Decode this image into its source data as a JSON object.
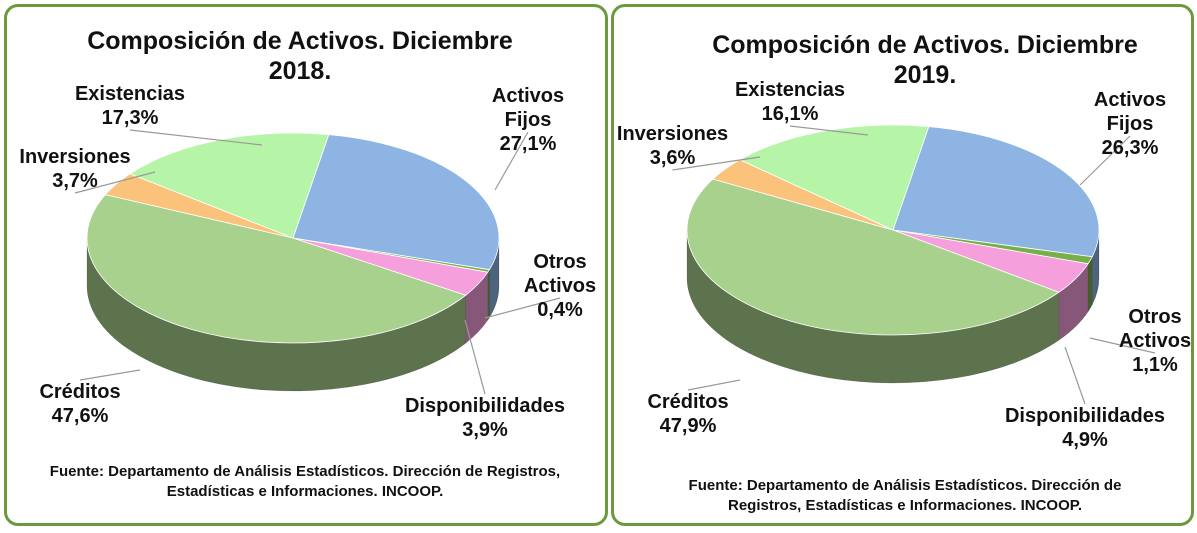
{
  "chart_data": [
    {
      "type": "pie3d",
      "title": "Composición de Activos. Diciembre 2018.",
      "categories": [
        "Activos Fijos",
        "Otros Activos",
        "Disponibilidades",
        "Créditos",
        "Inversiones",
        "Existencias"
      ],
      "values": [
        27.1,
        0.4,
        3.9,
        47.6,
        3.7,
        17.3
      ],
      "value_labels": [
        "27,1%",
        "0,4%",
        "3,9%",
        "47,6%",
        "3,7%",
        "17,3%"
      ],
      "colors": [
        "#8db4e2",
        "#77b04a",
        "#f59fdc",
        "#a9d18e",
        "#fac27a",
        "#b6f5a8"
      ],
      "source": "Fuente: Departamento de Análisis Estadísticos. Dirección de Registros, Estadísticas e Informaciones. INCOOP."
    },
    {
      "type": "pie3d",
      "title": "Composición de Activos. Diciembre 2019.",
      "categories": [
        "Activos Fijos",
        "Otros Activos",
        "Disponibilidades",
        "Créditos",
        "Inversiones",
        "Existencias"
      ],
      "values": [
        26.3,
        1.1,
        4.9,
        47.9,
        3.6,
        16.1
      ],
      "value_labels": [
        "26,3%",
        "1,1%",
        "4,9%",
        "47,9%",
        "3,6%",
        "16,1%"
      ],
      "colors": [
        "#8db4e2",
        "#77b04a",
        "#f59fdc",
        "#a9d18e",
        "#fac27a",
        "#b6f5a8"
      ],
      "source": "Fuente: Departamento de Análisis Estadísticos. Dirección de Registros, Estadísticas e Informaciones. INCOOP."
    }
  ]
}
